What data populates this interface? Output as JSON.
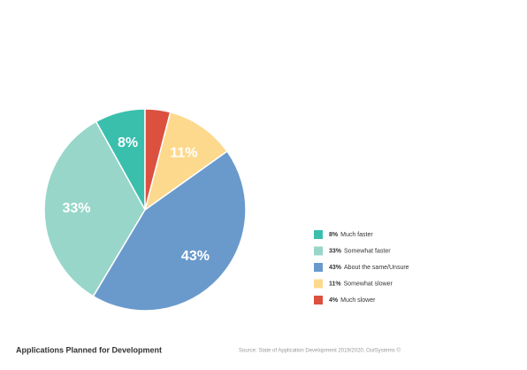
{
  "chart_data": {
    "type": "pie",
    "title": "Applications Planned for Development",
    "source": "Source: State of Application Development 2019/2020, OutSystems ©",
    "categories": [
      "Much faster",
      "Somewhat faster",
      "About the same/Unsure",
      "Somewhat slower",
      "Much slower"
    ],
    "values": [
      8,
      33,
      43,
      11,
      4
    ],
    "value_labels": [
      "8%",
      "33%",
      "43%",
      "11%",
      "4%"
    ],
    "colors": [
      "#3bbfad",
      "#98d6c9",
      "#6a9acc",
      "#fdd98e",
      "#dc5040"
    ]
  }
}
